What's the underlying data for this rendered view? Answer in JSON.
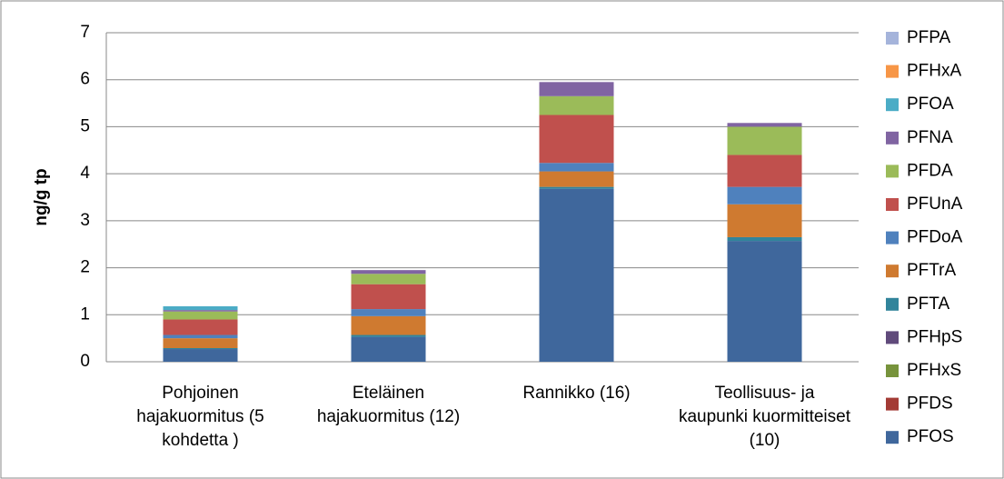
{
  "chart_data": {
    "type": "stacked_bar",
    "y_label": "ng/g tp",
    "categories": [
      "Pohjoinen hajakuormitus (5 kohdetta )",
      "Eteläinen hajakuormitus (12)",
      "Rannikko (16)",
      "Teollisuus- ja kaupunki kuormitteiset (10)"
    ],
    "series": [
      {
        "name": "PFOS",
        "color": "#3f679c",
        "values": [
          0.27,
          0.53,
          3.68,
          2.57
        ]
      },
      {
        "name": "PFDS",
        "color": "#a33b35",
        "values": [
          0,
          0,
          0,
          0
        ]
      },
      {
        "name": "PFHxS",
        "color": "#77933c",
        "values": [
          0,
          0,
          0,
          0
        ]
      },
      {
        "name": "PFHpS",
        "color": "#604a7b",
        "values": [
          0,
          0,
          0,
          0
        ]
      },
      {
        "name": "PFTA",
        "color": "#31849b",
        "values": [
          0.02,
          0.04,
          0.04,
          0.08
        ]
      },
      {
        "name": "PFTrA",
        "color": "#cf7a30",
        "values": [
          0.21,
          0.4,
          0.33,
          0.7
        ]
      },
      {
        "name": "PFDoA",
        "color": "#4f81bd",
        "values": [
          0.07,
          0.15,
          0.18,
          0.37
        ]
      },
      {
        "name": "PFUnA",
        "color": "#c0504d",
        "values": [
          0.33,
          0.53,
          1.02,
          0.68
        ]
      },
      {
        "name": "PFDA",
        "color": "#9bbb59",
        "values": [
          0.17,
          0.22,
          0.4,
          0.6
        ]
      },
      {
        "name": "PFNA",
        "color": "#8064a2",
        "values": [
          0.03,
          0.08,
          0.3,
          0.08
        ]
      },
      {
        "name": "PFOA",
        "color": "#4bacc6",
        "values": [
          0.08,
          0,
          0,
          0
        ]
      },
      {
        "name": "PFHxA",
        "color": "#f79646",
        "values": [
          0,
          0,
          0,
          0
        ]
      },
      {
        "name": "PFPA",
        "color": "#a5b4db",
        "values": [
          0,
          0,
          0,
          0
        ]
      }
    ],
    "ylim": [
      0,
      7
    ],
    "yticks": [
      0,
      1,
      2,
      3,
      4,
      5,
      6,
      7
    ],
    "grid": true,
    "legend": "right"
  }
}
